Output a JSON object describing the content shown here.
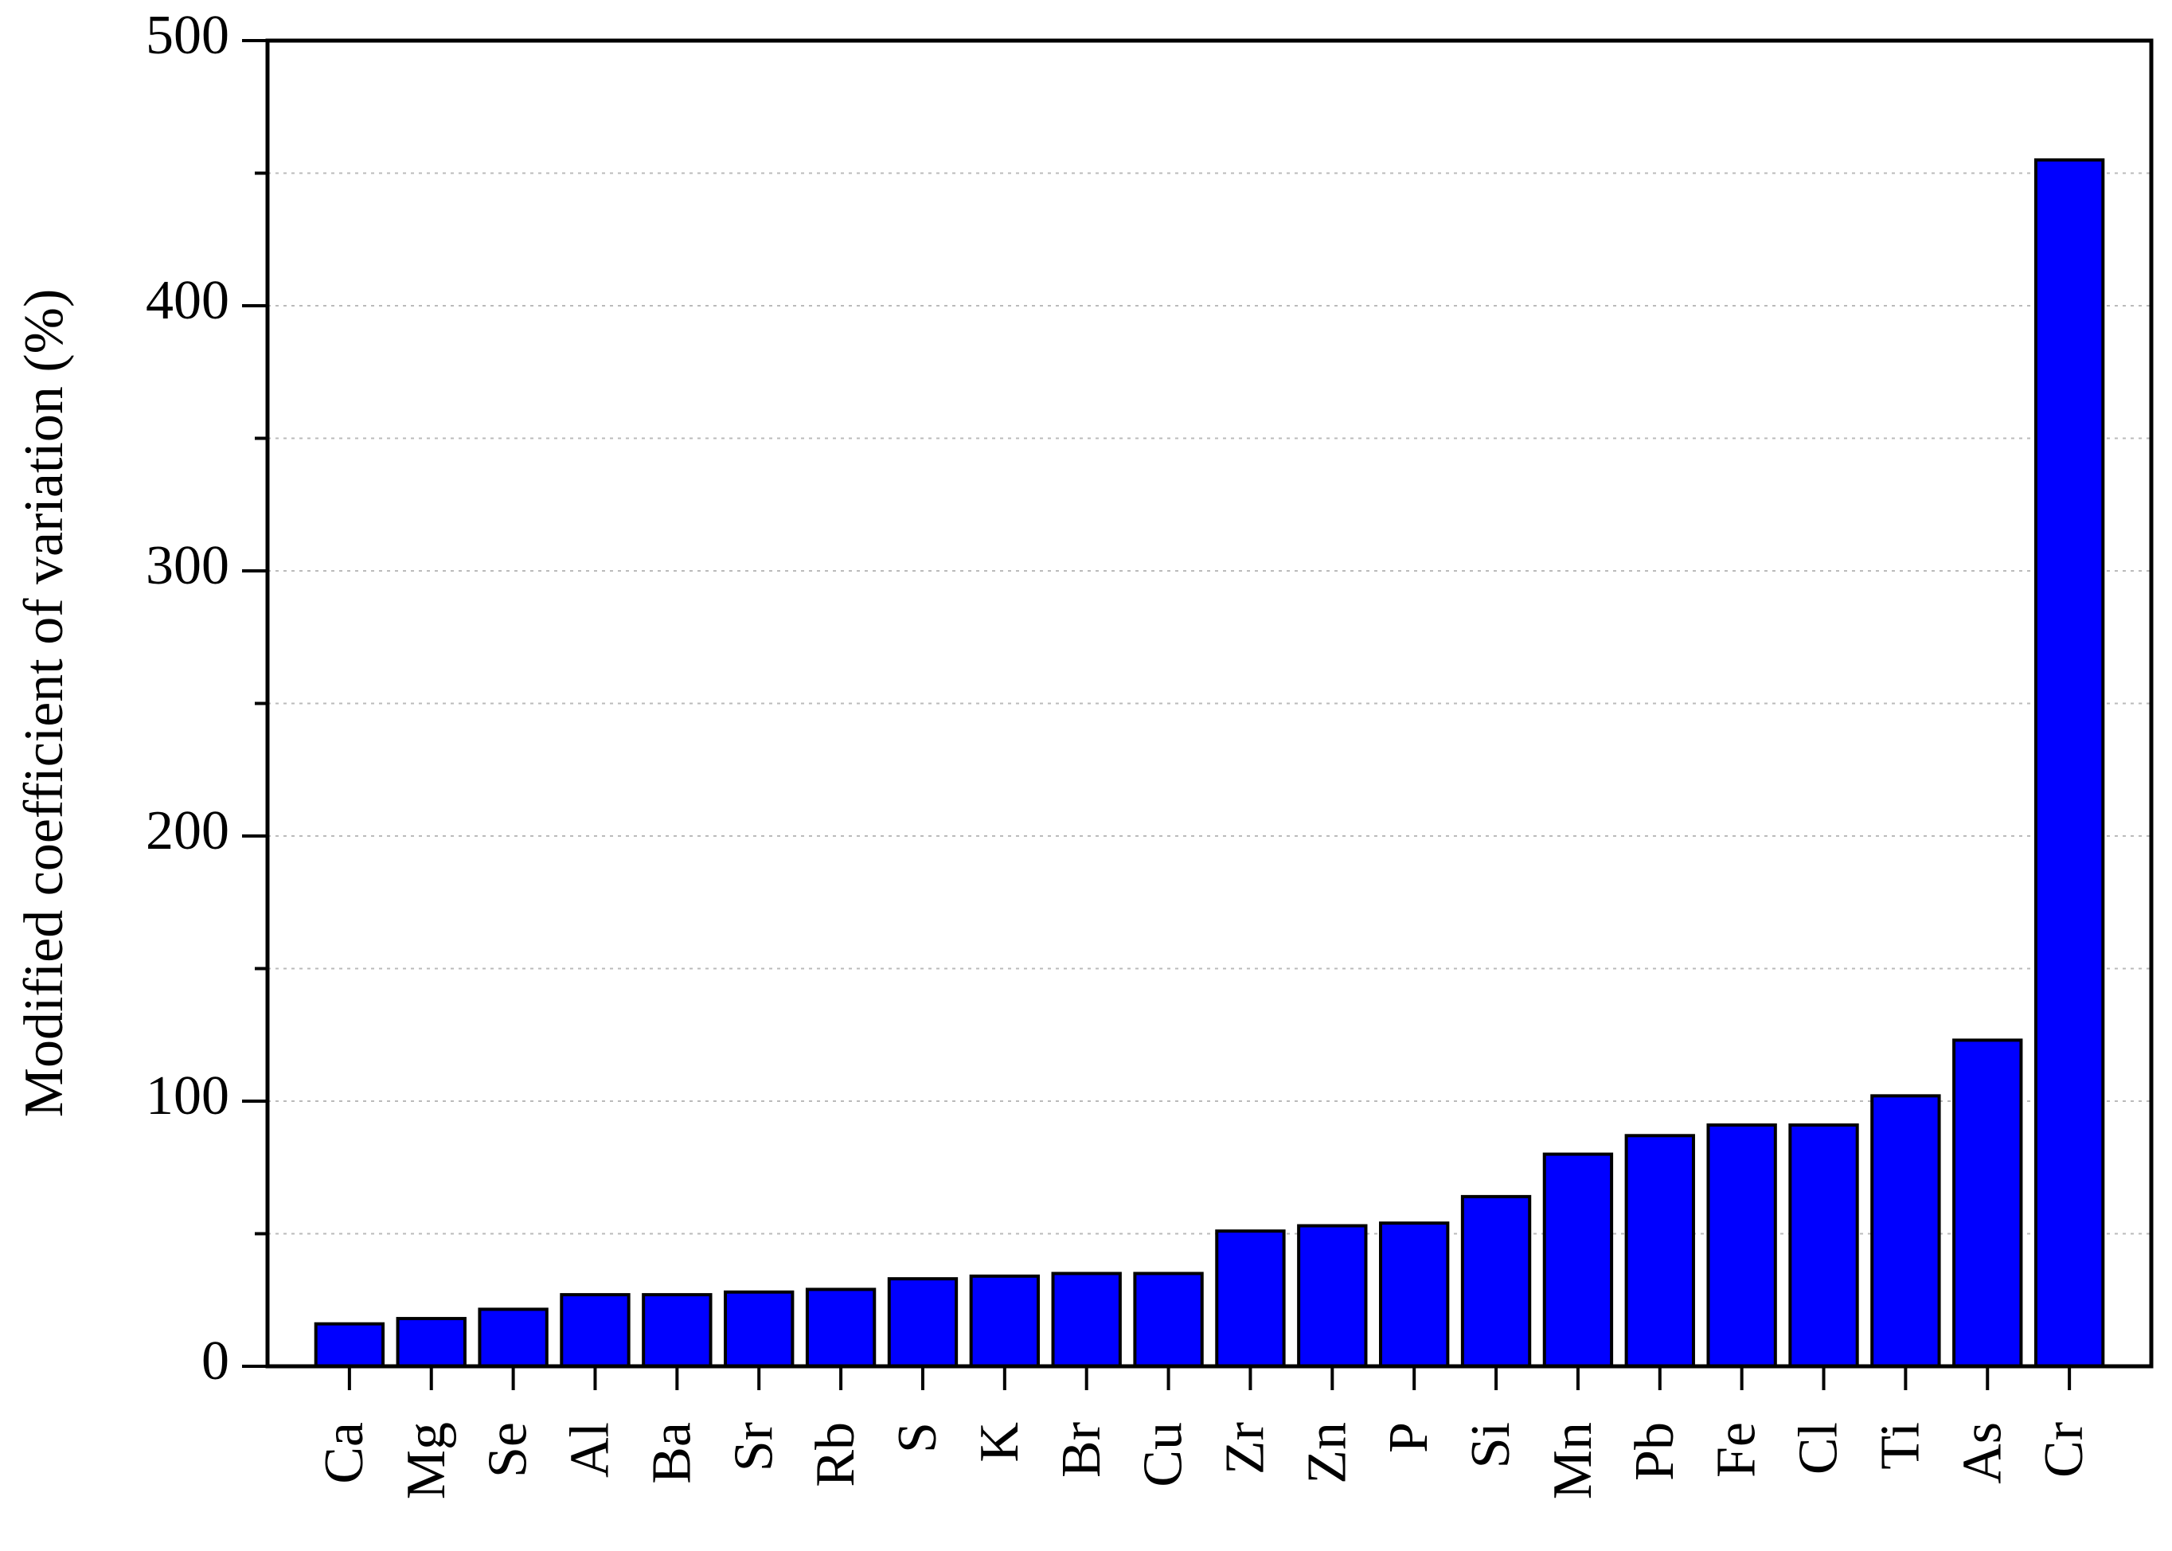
{
  "chart_data": {
    "type": "bar",
    "y_label": "Modified coefficient of variation (%)",
    "categories": [
      "Ca",
      "Mg",
      "Se",
      "Al",
      "Ba",
      "Sr",
      "Rb",
      "S",
      "K",
      "Br",
      "Cu",
      "Zr",
      "Zn",
      "P",
      "Si",
      "Mn",
      "Pb",
      "Fe",
      "Cl",
      "Ti",
      "As",
      "Cr"
    ],
    "values": [
      16,
      18,
      21.5,
      27,
      27,
      28,
      29,
      33,
      34,
      35,
      35,
      51,
      53,
      54,
      64,
      80,
      87,
      91,
      91,
      102,
      123,
      455
    ],
    "color": "#0000ff",
    "ylim": [
      0,
      500
    ],
    "yticks": [
      0,
      100,
      200,
      300,
      400,
      500
    ],
    "minor_yticks": [
      50,
      150,
      250,
      350,
      450
    ],
    "grid": true
  }
}
